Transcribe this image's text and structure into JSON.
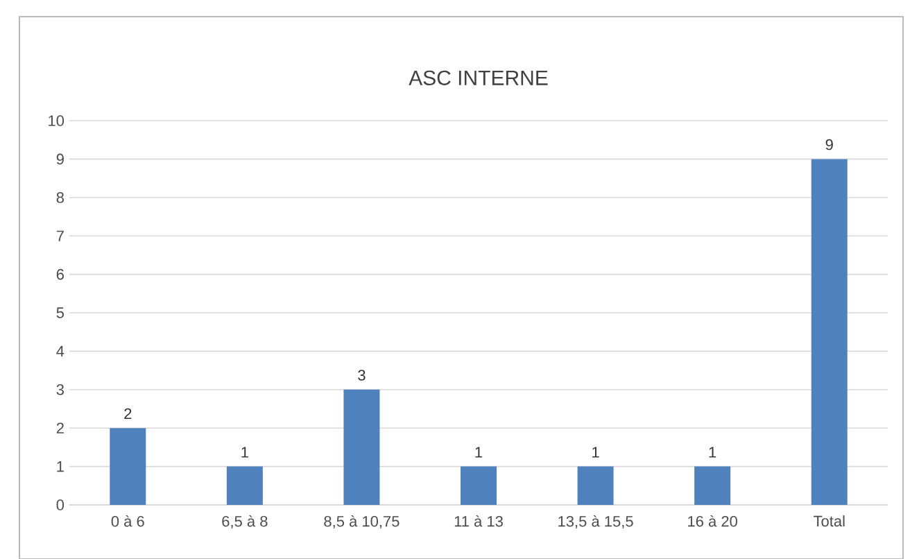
{
  "chart_data": {
    "type": "bar",
    "title": "ASC INTERNE",
    "categories": [
      "0 à 6",
      "6,5 à 8",
      "8,5 à 10,75",
      "11 à 13",
      "13,5 à 15,5",
      "16 à 20",
      "Total"
    ],
    "values": [
      2,
      1,
      3,
      1,
      1,
      1,
      9
    ],
    "color": "#4f81bd",
    "ylim": [
      0,
      10
    ],
    "yticks": [
      0,
      1,
      2,
      3,
      4,
      5,
      6,
      7,
      8,
      9,
      10
    ],
    "grid": "y",
    "data_labels": true
  }
}
